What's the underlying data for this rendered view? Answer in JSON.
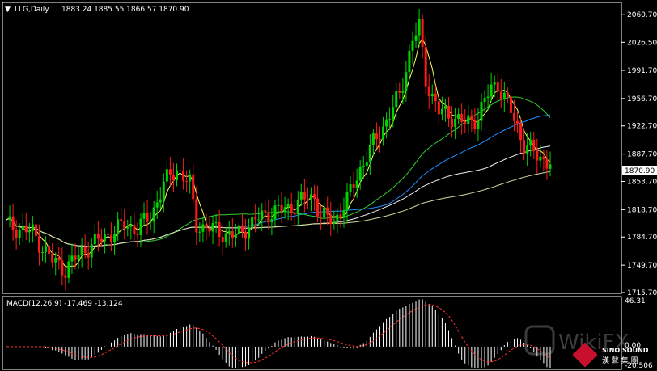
{
  "chart_header": {
    "symbol_period": "LLG,Daily",
    "ohlc": "1883.24 1885.55 1866.57 1870.90"
  },
  "price_axis": {
    "ticks": [
      "2060.70",
      "2026.50",
      "1991.70",
      "1956.70",
      "1922.70",
      "1887.70",
      "1853.70",
      "1818.70",
      "1784.70",
      "1749.70",
      "1715.70"
    ],
    "current_price": "1870.90"
  },
  "macd_panel": {
    "label": "MACD(12,26,9) -17.469 -13.124",
    "top_tick": "46.31",
    "zero_tick": "0.00",
    "bottom_tick": "-20.506"
  },
  "watermark": {
    "wikifx": "WikiFX",
    "sino_en": "SINO SOUND",
    "sino_cn": "漢 聲 集 團"
  },
  "colors": {
    "background": "#000000",
    "bull": "#00d400",
    "bear": "#ff1a1a",
    "ma_fast": "#ffff66",
    "ma_mid": "#1e90ff",
    "ma_green": "#33cc33",
    "ma_white": "#eeeeee",
    "ma_long": "#d8d8a0",
    "macd_hist": "#ffffff",
    "macd_signal": "#ff3030"
  },
  "chart_data": {
    "type": "candlestick",
    "ylim": [
      1715.7,
      2075
    ],
    "candles_count": 130,
    "macd_ylim": [
      -20.506,
      46.31
    ]
  }
}
